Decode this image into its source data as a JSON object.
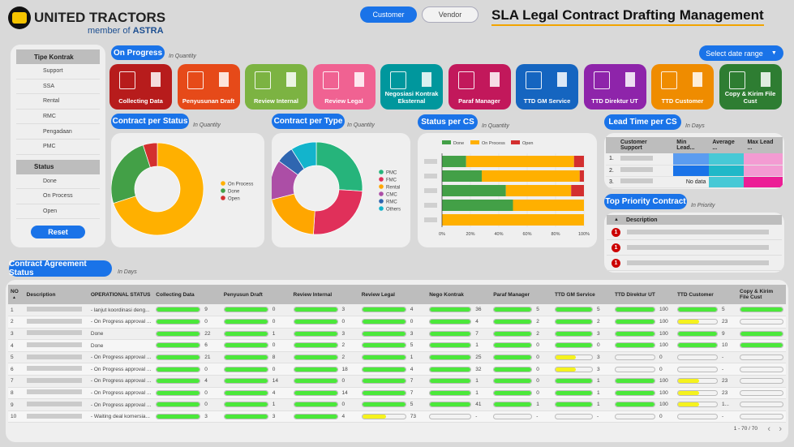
{
  "header": {
    "brand": "UNITED TRACTORS",
    "brand_sub_prefix": "member of ",
    "brand_sub_bold": "ASTRA",
    "toggle_customer": "Customer",
    "toggle_vendor": "Vendor",
    "title": "SLA Legal Contract Drafting Management",
    "date_range": "Select date range"
  },
  "filters": {
    "type_title": "Tipe Kontrak",
    "types": [
      "Support",
      "SSA",
      "Rental",
      "RMC",
      "Pengadaan",
      "PMC"
    ],
    "status_title": "Status",
    "statuses": [
      "Done",
      "On Process",
      "Open"
    ],
    "reset": "Reset"
  },
  "on_progress": {
    "title": "On Progress",
    "sub": "In Quantity",
    "stages": [
      {
        "label": "Collecting Data",
        "color": "#b71c1c"
      },
      {
        "label": "Penyusunan Draft",
        "color": "#e64a19"
      },
      {
        "label": "Review Internal",
        "color": "#7cb342"
      },
      {
        "label": "Review Legal",
        "color": "#f06292"
      },
      {
        "label": "Negosiasi Kontrak Eksternal",
        "color": "#00979d"
      },
      {
        "label": "Paraf Manager",
        "color": "#c2185b"
      },
      {
        "label": "TTD GM Service",
        "color": "#1565c0"
      },
      {
        "label": "TTD Direktur UT",
        "color": "#8e24aa"
      },
      {
        "label": "TTD Customer",
        "color": "#ef8c00"
      },
      {
        "label": "Copy & Kirim File Cust",
        "color": "#2e7d32"
      }
    ]
  },
  "status_chart": {
    "title": "Contract per Status",
    "sub": "In Quantity"
  },
  "type_chart": {
    "title": "Contract per Type",
    "sub": "In Quantity"
  },
  "cs_chart": {
    "title": "Status per CS",
    "sub": "In Quantity"
  },
  "lead_time": {
    "title": "Lead Time  per CS",
    "sub": "In Days",
    "headers": [
      "",
      "Customer Support",
      "Min Lead...",
      "Average ...",
      "Max Lead ..."
    ],
    "rows": [
      {
        "no": "1.",
        "min": "",
        "avg": "",
        "max": ""
      },
      {
        "no": "2.",
        "min": "",
        "avg": "",
        "max": ""
      },
      {
        "no": "3.",
        "min": "No data",
        "avg": "",
        "max": ""
      }
    ]
  },
  "priority": {
    "title": "Top Priority Contract",
    "sub": "In Priority",
    "header": "Description",
    "badge": "1",
    "rows": 3
  },
  "agreement": {
    "title": "Contract Agreement Status",
    "sub": "In Days",
    "headers": [
      "NO",
      "Description",
      "OPERATIONAL STATUS",
      "Collecting Data",
      "Penyusun Draft",
      "Review Internal",
      "Review Legal",
      "Nego Kontrak",
      "Paraf Manager",
      "TTD GM Service",
      "TTD Direktur UT",
      "TTD Customer",
      "Copy & Kirim File Cust"
    ],
    "rows": [
      {
        "no": "1",
        "status": "- lanjut koordinasi deng...",
        "vals": [
          "9",
          "0",
          "3",
          "4",
          "36",
          "5",
          "5",
          "100",
          "5",
          ""
        ],
        "fill": [
          1,
          1,
          1,
          1,
          1,
          1,
          1,
          1,
          1,
          1
        ],
        "color": [
          "g",
          "g",
          "g",
          "g",
          "g",
          "g",
          "g",
          "g",
          "g",
          "g"
        ]
      },
      {
        "no": "2",
        "status": "- On Progress approval ...",
        "vals": [
          "0",
          "0",
          "0",
          "0",
          "4",
          "2",
          "2",
          "100",
          "23",
          ""
        ],
        "fill": [
          1,
          1,
          1,
          1,
          1,
          1,
          1,
          1,
          0.55,
          0
        ],
        "color": [
          "g",
          "g",
          "g",
          "g",
          "g",
          "g",
          "g",
          "g",
          "y",
          "n"
        ]
      },
      {
        "no": "3",
        "status": "Done",
        "vals": [
          "22",
          "1",
          "3",
          "3",
          "7",
          "2",
          "3",
          "100",
          "9",
          ""
        ],
        "fill": [
          1,
          1,
          1,
          1,
          1,
          1,
          1,
          1,
          1,
          1
        ],
        "color": [
          "g",
          "g",
          "g",
          "g",
          "g",
          "g",
          "g",
          "g",
          "g",
          "g"
        ]
      },
      {
        "no": "4",
        "status": "Done",
        "vals": [
          "6",
          "0",
          "2",
          "5",
          "1",
          "0",
          "0",
          "100",
          "10",
          ""
        ],
        "fill": [
          1,
          1,
          1,
          1,
          1,
          1,
          1,
          1,
          1,
          1
        ],
        "color": [
          "g",
          "g",
          "g",
          "g",
          "g",
          "g",
          "g",
          "g",
          "g",
          "g"
        ]
      },
      {
        "no": "5",
        "status": "- On Progress approval ...",
        "vals": [
          "21",
          "8",
          "2",
          "1",
          "25",
          "0",
          "3",
          "0",
          "-",
          ""
        ],
        "fill": [
          1,
          1,
          1,
          1,
          1,
          1,
          0.55,
          0,
          0,
          0
        ],
        "color": [
          "g",
          "g",
          "g",
          "g",
          "g",
          "g",
          "y",
          "n",
          "n",
          "n"
        ]
      },
      {
        "no": "6",
        "status": "- On Progress approval ...",
        "vals": [
          "0",
          "0",
          "18",
          "4",
          "32",
          "0",
          "3",
          "0",
          "-",
          ""
        ],
        "fill": [
          1,
          1,
          1,
          1,
          1,
          1,
          0.55,
          0,
          0,
          0
        ],
        "color": [
          "g",
          "g",
          "g",
          "g",
          "g",
          "g",
          "y",
          "n",
          "n",
          "n"
        ]
      },
      {
        "no": "7",
        "status": "- On Progress approval ...",
        "vals": [
          "4",
          "14",
          "0",
          "7",
          "1",
          "0",
          "1",
          "100",
          "23",
          ""
        ],
        "fill": [
          1,
          1,
          1,
          1,
          1,
          1,
          1,
          1,
          0.55,
          0
        ],
        "color": [
          "g",
          "g",
          "g",
          "g",
          "g",
          "g",
          "g",
          "g",
          "y",
          "n"
        ]
      },
      {
        "no": "8",
        "status": "- On Progress approval ...",
        "vals": [
          "0",
          "4",
          "14",
          "7",
          "1",
          "0",
          "1",
          "100",
          "23",
          ""
        ],
        "fill": [
          1,
          1,
          1,
          1,
          1,
          1,
          1,
          1,
          0.55,
          0
        ],
        "color": [
          "g",
          "g",
          "g",
          "g",
          "g",
          "g",
          "g",
          "g",
          "y",
          "n"
        ]
      },
      {
        "no": "9",
        "status": "- On Progress approval ...",
        "vals": [
          "0",
          "1",
          "0",
          "5",
          "41",
          "1",
          "1",
          "100",
          "1...",
          ""
        ],
        "fill": [
          1,
          1,
          1,
          1,
          1,
          1,
          1,
          1,
          0.55,
          0
        ],
        "color": [
          "g",
          "g",
          "g",
          "g",
          "g",
          "g",
          "g",
          "g",
          "y",
          "n"
        ]
      },
      {
        "no": "10",
        "status": "- Waiting deal komersia...",
        "vals": [
          "3",
          "3",
          "4",
          "73",
          "-",
          "-",
          "-",
          "0",
          "-",
          ""
        ],
        "fill": [
          1,
          1,
          1,
          0.55,
          0,
          0,
          0,
          0,
          0,
          0
        ],
        "color": [
          "g",
          "g",
          "g",
          "y",
          "n",
          "n",
          "n",
          "n",
          "n",
          "n"
        ]
      }
    ],
    "pagination": "1 - 70 / 70",
    "prev": "‹",
    "next": "›"
  },
  "chart_data": [
    {
      "type": "pie",
      "title": "Contract per Status",
      "labels": [
        "On Process",
        "Done",
        "Open"
      ],
      "values": [
        70,
        25,
        5
      ],
      "colors": [
        "#ffb000",
        "#43a047",
        "#d32f2f"
      ],
      "donut": true,
      "legend": "right"
    },
    {
      "type": "pie",
      "title": "Contract per Type",
      "labels": [
        "PMC",
        "FMC",
        "Rental",
        "CMC",
        "RMC",
        "Others"
      ],
      "values": [
        26,
        25,
        20,
        14,
        6,
        9
      ],
      "colors": [
        "#26b47b",
        "#e0305a",
        "#ffa600",
        "#ac4ea6",
        "#2f66b0",
        "#13b4cc"
      ],
      "donut": true,
      "legend": "right"
    },
    {
      "type": "bar",
      "title": "Status per CS",
      "orientation": "horizontal",
      "stacked_percent": true,
      "categories": [
        "CS1",
        "CS2",
        "CS3",
        "CS4",
        "CS5"
      ],
      "series": [
        {
          "name": "Done",
          "color": "#43a047",
          "values": [
            17,
            28,
            45,
            50,
            0
          ]
        },
        {
          "name": "On Process",
          "color": "#ffb000",
          "values": [
            76,
            69,
            46,
            50,
            100
          ]
        },
        {
          "name": "Open",
          "color": "#d32f2f",
          "values": [
            7,
            3,
            9,
            0,
            0
          ]
        }
      ],
      "xticks": [
        "0%",
        "20%",
        "40%",
        "60%",
        "80%",
        "100%"
      ],
      "xlim": [
        0,
        100
      ],
      "legend": "top"
    }
  ]
}
